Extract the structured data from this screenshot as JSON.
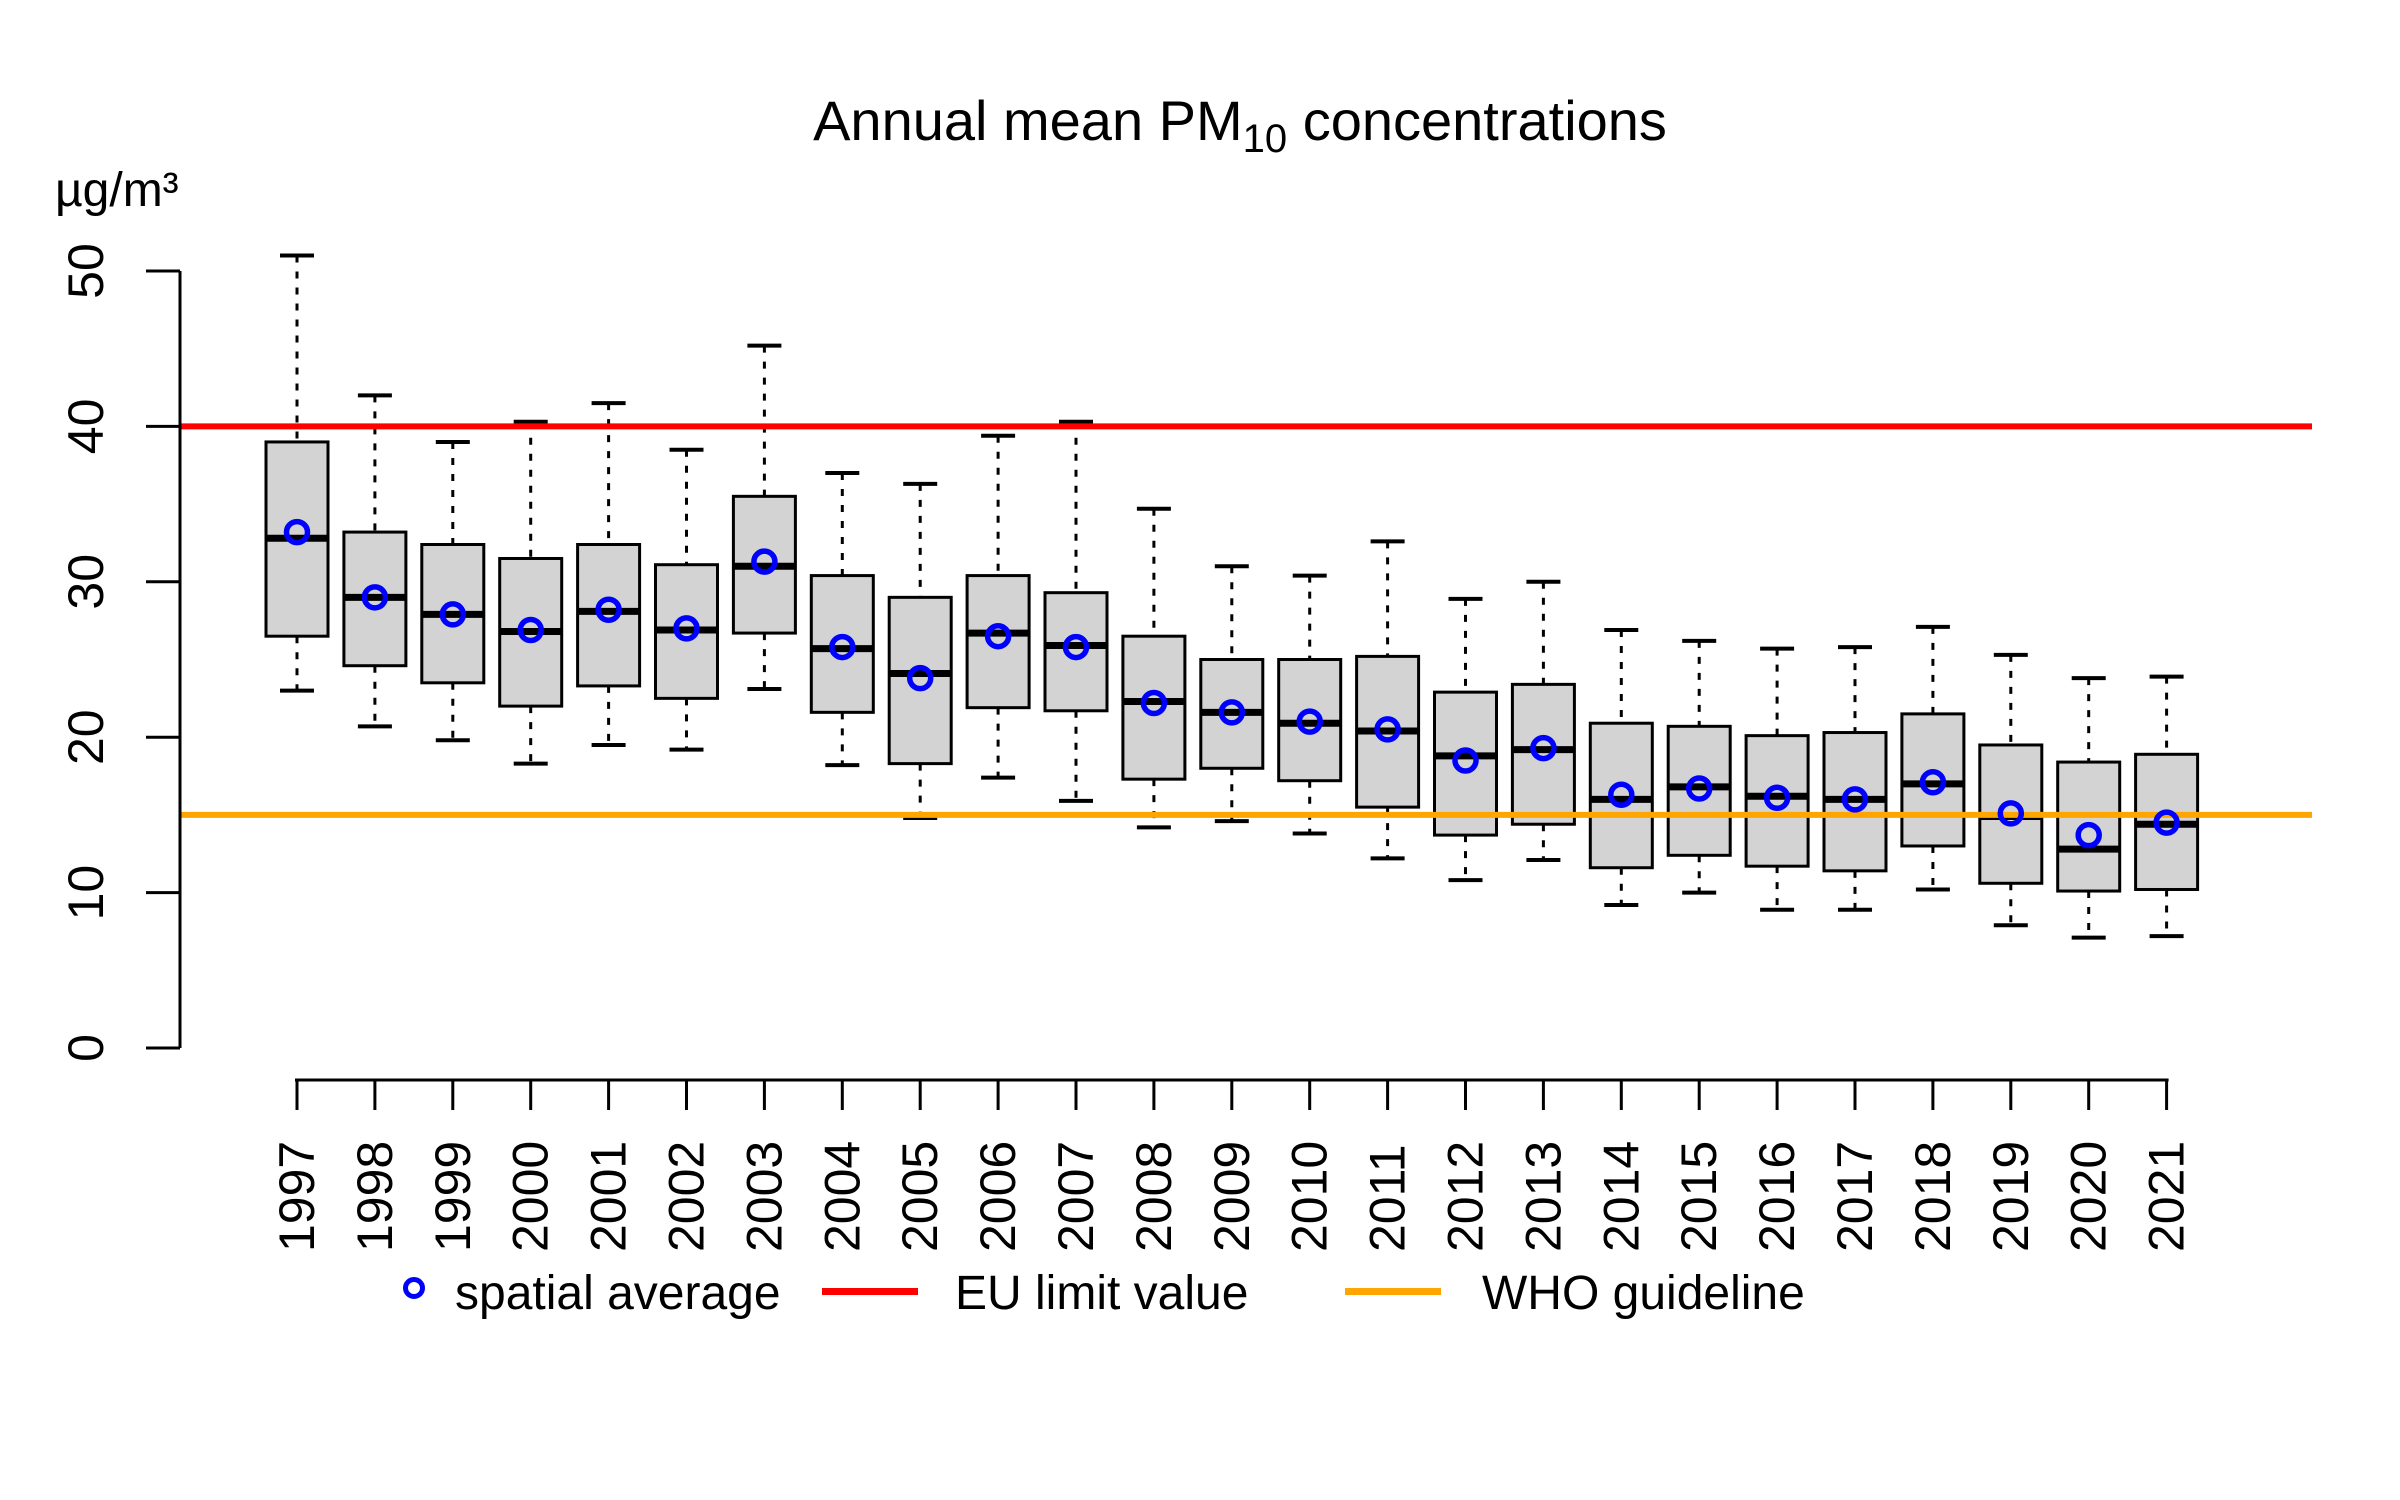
{
  "title": {
    "prefix": "Annual mean PM",
    "subscript": "10",
    "suffix": " concentrations"
  },
  "y_axis": {
    "unit_label": "µg/m³",
    "ticks": [
      "0",
      "10",
      "20",
      "30",
      "40",
      "50"
    ]
  },
  "legend": {
    "spatial_average": "spatial average",
    "eu_limit": "EU limit value",
    "who_guideline": "WHO guideline"
  },
  "colors": {
    "mean_marker": "#0000ff",
    "eu_line": "#ff0000",
    "who_line": "#ffa500",
    "box_fill": "#d3d3d3",
    "box_border": "#000000",
    "median": "#000000",
    "axis": "#000000"
  },
  "chart_data": {
    "type": "boxplot",
    "title": "Annual mean PM10 concentrations",
    "xlabel": "",
    "ylabel": "µg/m³",
    "ylim": [
      0,
      52
    ],
    "y_ticks": [
      0,
      10,
      20,
      30,
      40,
      50
    ],
    "grid": false,
    "legend_position": "bottom",
    "categories": [
      1997,
      1998,
      1999,
      2000,
      2001,
      2002,
      2003,
      2004,
      2005,
      2006,
      2007,
      2008,
      2009,
      2010,
      2011,
      2012,
      2013,
      2014,
      2015,
      2016,
      2017,
      2018,
      2019,
      2020,
      2021
    ],
    "boxes": [
      {
        "year": 1997,
        "whisker_low": 23.0,
        "q1": 26.5,
        "median": 32.8,
        "q3": 39.0,
        "whisker_high": 51.0,
        "mean": 33.2
      },
      {
        "year": 1998,
        "whisker_low": 20.7,
        "q1": 24.6,
        "median": 29.0,
        "q3": 33.2,
        "whisker_high": 42.0,
        "mean": 29.0
      },
      {
        "year": 1999,
        "whisker_low": 19.8,
        "q1": 23.5,
        "median": 27.9,
        "q3": 32.4,
        "whisker_high": 39.0,
        "mean": 27.9
      },
      {
        "year": 2000,
        "whisker_low": 18.3,
        "q1": 22.0,
        "median": 26.8,
        "q3": 31.5,
        "whisker_high": 40.3,
        "mean": 26.9
      },
      {
        "year": 2001,
        "whisker_low": 19.5,
        "q1": 23.3,
        "median": 28.1,
        "q3": 32.4,
        "whisker_high": 41.5,
        "mean": 28.2
      },
      {
        "year": 2002,
        "whisker_low": 19.2,
        "q1": 22.5,
        "median": 26.9,
        "q3": 31.1,
        "whisker_high": 38.5,
        "mean": 27.0
      },
      {
        "year": 2003,
        "whisker_low": 23.1,
        "q1": 26.7,
        "median": 31.0,
        "q3": 35.5,
        "whisker_high": 45.2,
        "mean": 31.3
      },
      {
        "year": 2004,
        "whisker_low": 18.2,
        "q1": 21.6,
        "median": 25.7,
        "q3": 30.4,
        "whisker_high": 37.0,
        "mean": 25.8
      },
      {
        "year": 2005,
        "whisker_low": 14.8,
        "q1": 18.3,
        "median": 24.1,
        "q3": 29.0,
        "whisker_high": 36.3,
        "mean": 23.8
      },
      {
        "year": 2006,
        "whisker_low": 17.4,
        "q1": 21.9,
        "median": 26.7,
        "q3": 30.4,
        "whisker_high": 39.4,
        "mean": 26.5
      },
      {
        "year": 2007,
        "whisker_low": 15.9,
        "q1": 21.7,
        "median": 25.9,
        "q3": 29.3,
        "whisker_high": 40.3,
        "mean": 25.8
      },
      {
        "year": 2008,
        "whisker_low": 14.2,
        "q1": 17.3,
        "median": 22.3,
        "q3": 26.5,
        "whisker_high": 34.7,
        "mean": 22.2
      },
      {
        "year": 2009,
        "whisker_low": 14.6,
        "q1": 18.0,
        "median": 21.6,
        "q3": 25.0,
        "whisker_high": 31.0,
        "mean": 21.6
      },
      {
        "year": 2010,
        "whisker_low": 13.8,
        "q1": 17.2,
        "median": 20.9,
        "q3": 25.0,
        "whisker_high": 30.4,
        "mean": 21.0
      },
      {
        "year": 2011,
        "whisker_low": 12.2,
        "q1": 15.5,
        "median": 20.4,
        "q3": 25.2,
        "whisker_high": 32.6,
        "mean": 20.5
      },
      {
        "year": 2012,
        "whisker_low": 10.8,
        "q1": 13.7,
        "median": 18.8,
        "q3": 22.9,
        "whisker_high": 28.9,
        "mean": 18.5
      },
      {
        "year": 2013,
        "whisker_low": 12.1,
        "q1": 14.4,
        "median": 19.2,
        "q3": 23.4,
        "whisker_high": 30.0,
        "mean": 19.3
      },
      {
        "year": 2014,
        "whisker_low": 9.2,
        "q1": 11.6,
        "median": 16.0,
        "q3": 20.9,
        "whisker_high": 26.9,
        "mean": 16.3
      },
      {
        "year": 2015,
        "whisker_low": 10.0,
        "q1": 12.4,
        "median": 16.8,
        "q3": 20.7,
        "whisker_high": 26.2,
        "mean": 16.7
      },
      {
        "year": 2016,
        "whisker_low": 8.9,
        "q1": 11.7,
        "median": 16.2,
        "q3": 20.1,
        "whisker_high": 25.7,
        "mean": 16.1
      },
      {
        "year": 2017,
        "whisker_low": 8.9,
        "q1": 11.4,
        "median": 16.0,
        "q3": 20.3,
        "whisker_high": 25.8,
        "mean": 16.0
      },
      {
        "year": 2018,
        "whisker_low": 10.2,
        "q1": 13.0,
        "median": 17.0,
        "q3": 21.5,
        "whisker_high": 27.1,
        "mean": 17.1
      },
      {
        "year": 2019,
        "whisker_low": 7.9,
        "q1": 10.6,
        "median": 14.9,
        "q3": 19.5,
        "whisker_high": 25.3,
        "mean": 15.1
      },
      {
        "year": 2020,
        "whisker_low": 7.1,
        "q1": 10.1,
        "median": 12.8,
        "q3": 18.4,
        "whisker_high": 23.8,
        "mean": 13.7
      },
      {
        "year": 2021,
        "whisker_low": 7.2,
        "q1": 10.2,
        "median": 14.4,
        "q3": 18.9,
        "whisker_high": 23.9,
        "mean": 14.5
      }
    ],
    "reference_lines": [
      {
        "label": "EU limit value",
        "value": 40,
        "color": "#ff0000"
      },
      {
        "label": "WHO guideline",
        "value": 15,
        "color": "#ffa500"
      }
    ],
    "series_legend": [
      {
        "label": "spatial average",
        "marker": "open-circle",
        "color": "#0000ff"
      },
      {
        "label": "EU limit value",
        "marker": "line",
        "color": "#ff0000"
      },
      {
        "label": "WHO guideline",
        "marker": "line",
        "color": "#ffa500"
      }
    ]
  }
}
